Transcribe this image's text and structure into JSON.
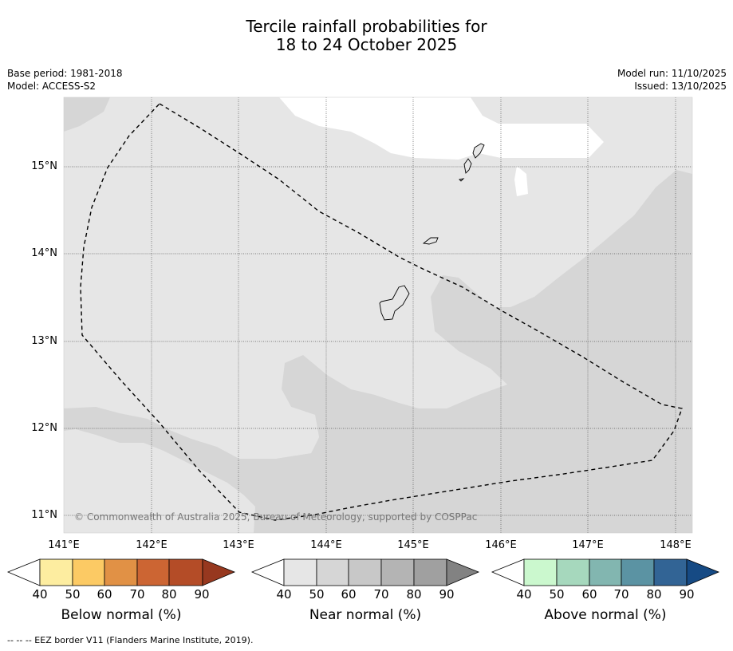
{
  "title": {
    "line1": "Tercile rainfall probabilities for",
    "line2": "18 to 24 October 2025"
  },
  "meta": {
    "base_period": "Base period: 1981-2018",
    "model": "Model: ACCESS-S2",
    "model_run": "Model run: 11/10/2025",
    "issued": "Issued: 13/10/2025"
  },
  "axes": {
    "latitudes": [
      "15°N",
      "14°N",
      "13°N",
      "12°N",
      "11°N"
    ],
    "longitudes": [
      "141°E",
      "142°E",
      "143°E",
      "144°E",
      "145°E",
      "146°E",
      "147°E",
      "148°E"
    ]
  },
  "copyright": "© Commonwealth of Australia 2025, Bureau of Meteorology, supported by COSPPac",
  "legends": [
    {
      "label": "Below normal (%)",
      "ticks": [
        "40",
        "50",
        "60",
        "70",
        "80",
        "90"
      ],
      "colors": [
        "#ffffff",
        "#fdeda0",
        "#fcca64",
        "#e19145",
        "#cc6533",
        "#b44c27",
        "#97381f"
      ]
    },
    {
      "label": "Near normal (%)",
      "ticks": [
        "40",
        "50",
        "60",
        "70",
        "80",
        "90"
      ],
      "colors": [
        "#ffffff",
        "#e6e6e6",
        "#d6d6d6",
        "#c8c8c8",
        "#b4b4b4",
        "#a0a0a0",
        "#828282"
      ]
    },
    {
      "label": "Above normal (%)",
      "ticks": [
        "40",
        "50",
        "60",
        "70",
        "80",
        "90"
      ],
      "colors": [
        "#ffffff",
        "#cbf8ce",
        "#a6d8bd",
        "#82b6b0",
        "#5b93a3",
        "#326495",
        "#164a84"
      ]
    }
  ],
  "footer": {
    "eez_note": "--  --  -- EEZ border V11 (Flanders Marine Institute, 2019)."
  }
}
